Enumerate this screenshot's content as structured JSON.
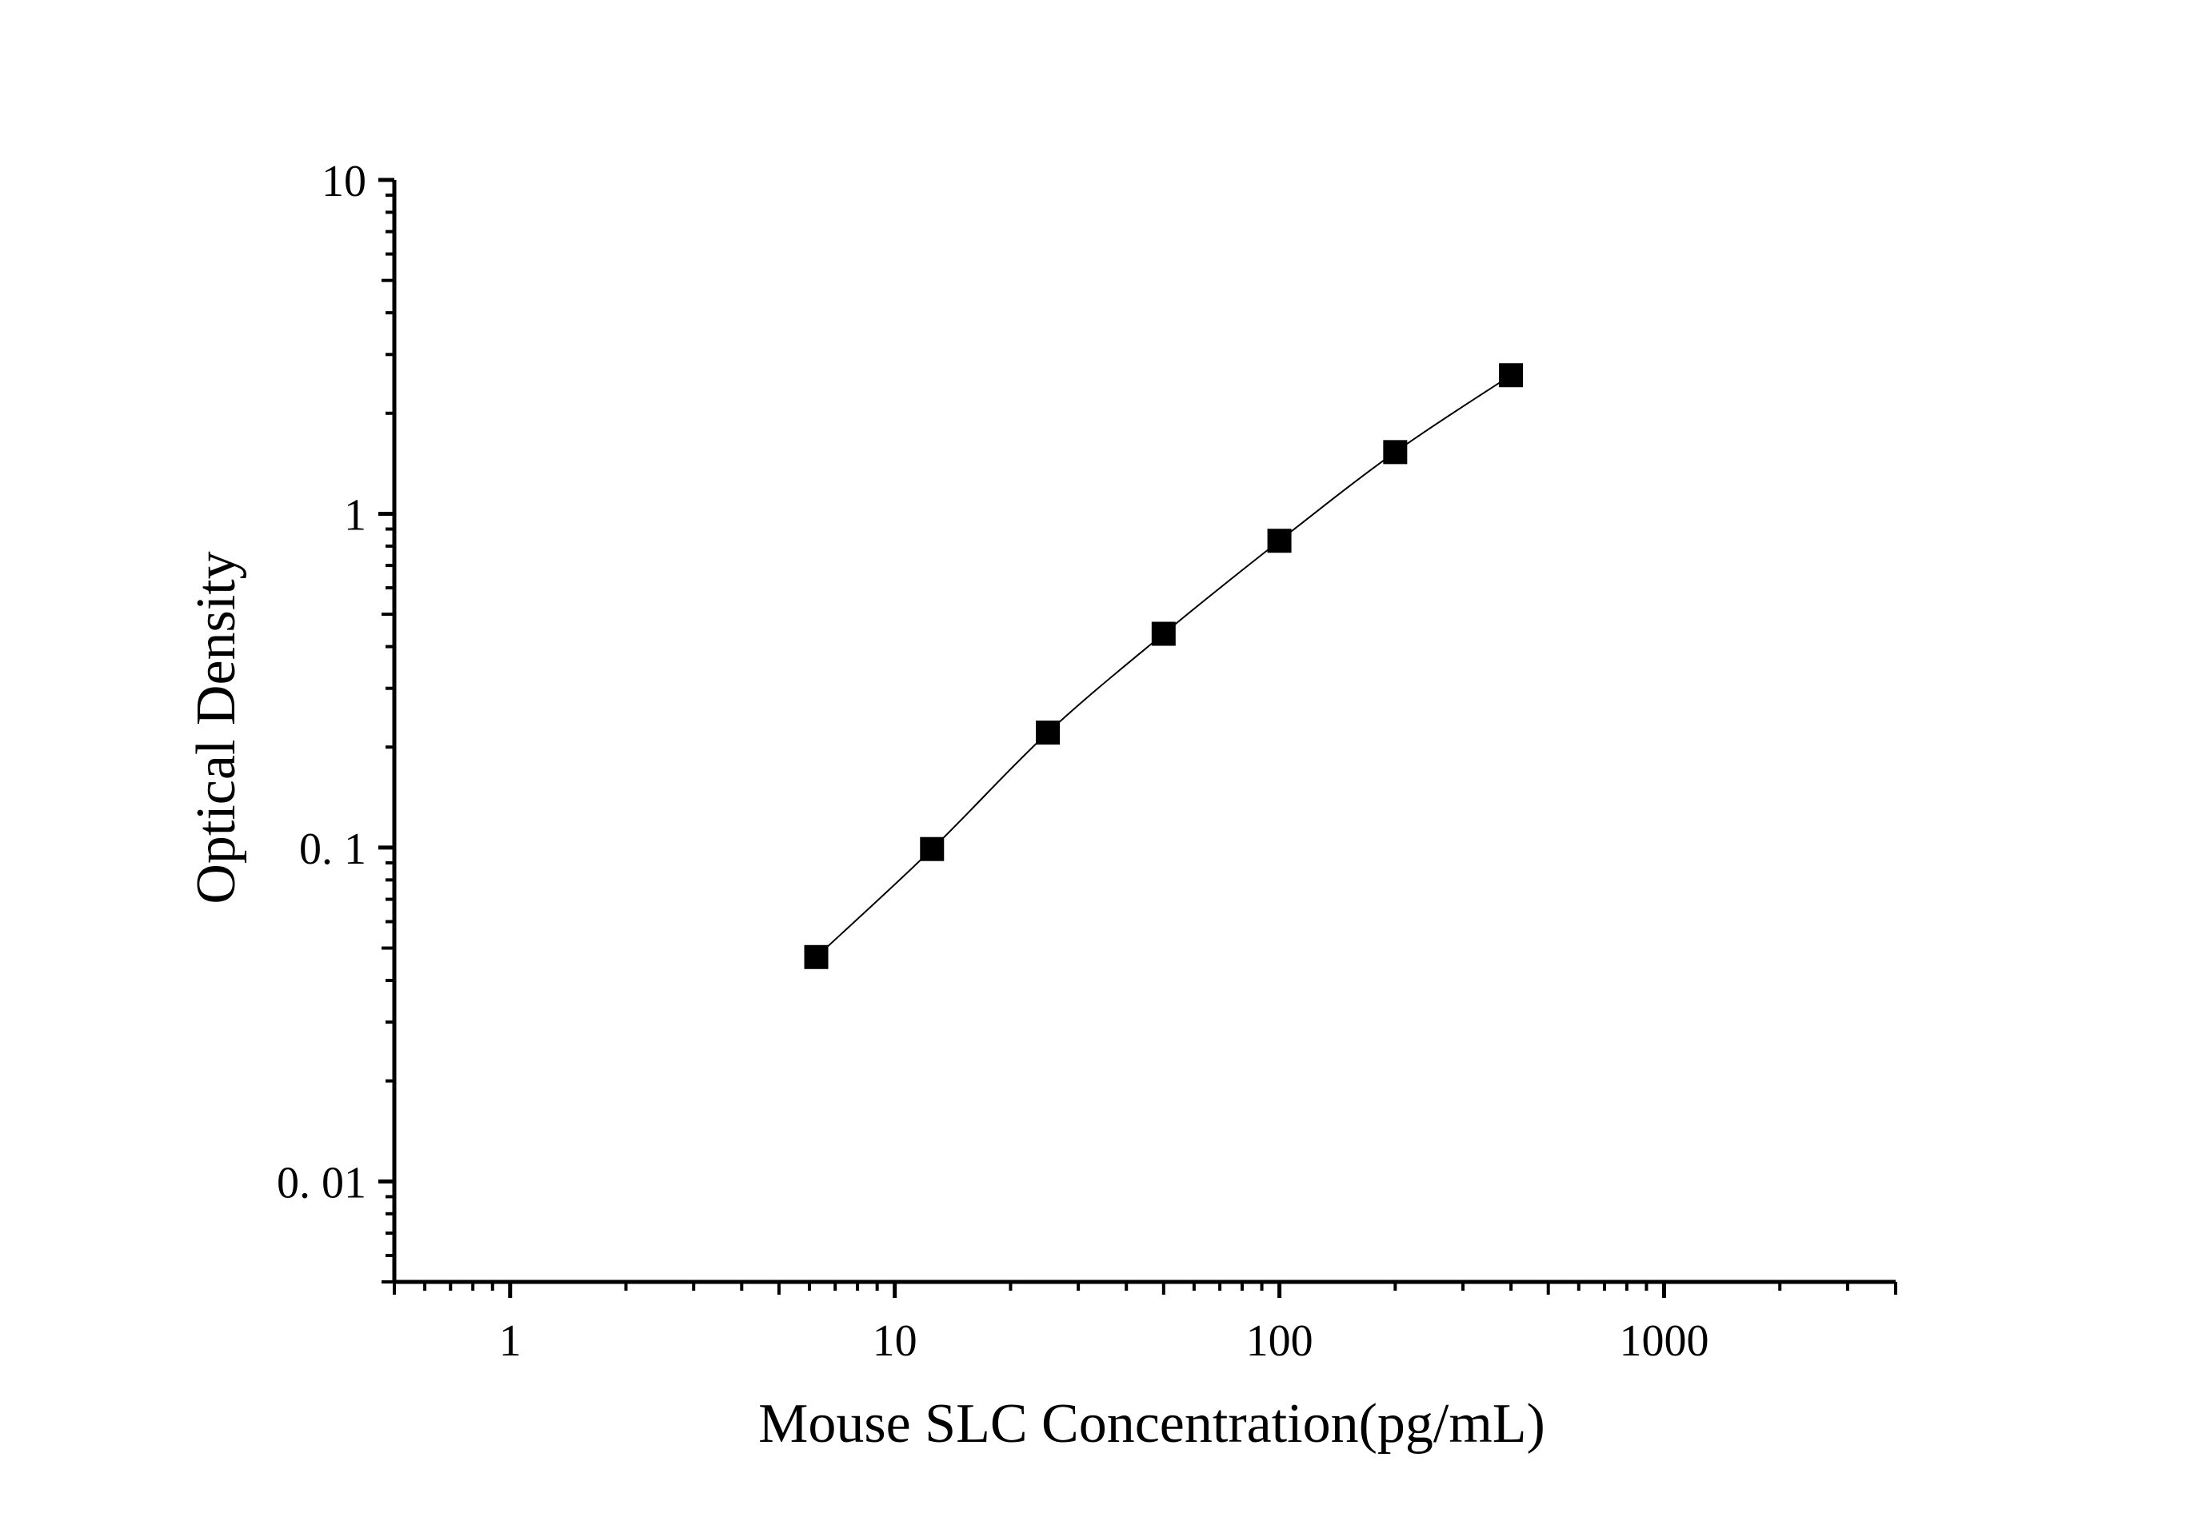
{
  "chart_data": {
    "type": "scatter",
    "title": "",
    "xlabel": "Mouse SLC Concentration(pg/mL)",
    "ylabel": "Optical Density",
    "xscale": "log",
    "yscale": "log",
    "xlim": [
      0.5,
      4000
    ],
    "ylim": [
      0.005,
      10
    ],
    "x_ticks": [
      {
        "value": 1,
        "label": "1"
      },
      {
        "value": 10,
        "label": "10"
      },
      {
        "value": 100,
        "label": "100"
      },
      {
        "value": 1000,
        "label": "1000"
      }
    ],
    "y_ticks": [
      {
        "value": 0.01,
        "label": "0. 01"
      },
      {
        "value": 0.1,
        "label": "0. 1"
      },
      {
        "value": 1,
        "label": "1"
      },
      {
        "value": 10,
        "label": "10"
      }
    ],
    "grid": false,
    "legend": "none",
    "series": [
      {
        "marker": "square",
        "fit_line": true,
        "points": [
          {
            "x": 6.25,
            "y": 0.047
          },
          {
            "x": 12.5,
            "y": 0.099
          },
          {
            "x": 25,
            "y": 0.221
          },
          {
            "x": 50,
            "y": 0.437
          },
          {
            "x": 100,
            "y": 0.83
          },
          {
            "x": 200,
            "y": 1.53
          },
          {
            "x": 400,
            "y": 2.6
          }
        ]
      }
    ],
    "colors": {
      "axis": "#000000",
      "marker": "#000000",
      "line": "#000000",
      "background": "#ffffff"
    }
  }
}
